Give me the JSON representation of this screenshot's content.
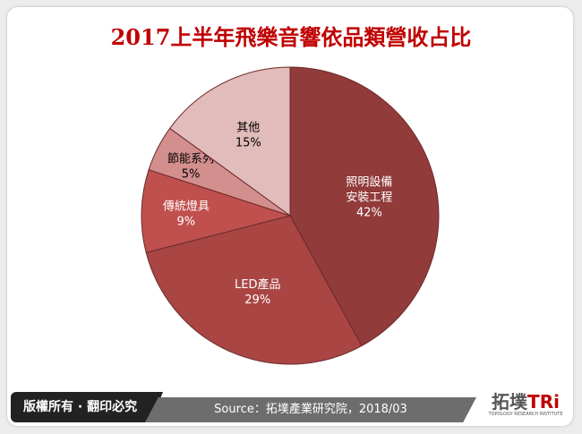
{
  "chart_data": {
    "type": "pie",
    "title": "2017上半年飛樂音響依品類營收占比",
    "start": "top",
    "direction": "clockwise",
    "slices": [
      {
        "label": "照明設備\n安裝工程",
        "value": 42,
        "display": "42%",
        "color": "#913b3a",
        "text_color": "#ffffff"
      },
      {
        "label": "LED產品",
        "value": 29,
        "display": "29%",
        "color": "#a94644",
        "text_color": "#ffffff"
      },
      {
        "label": "傳統燈具",
        "value": 9,
        "display": "9%",
        "color": "#c0504d",
        "text_color": "#ffffff"
      },
      {
        "label": "節能系列",
        "value": 5,
        "display": "5%",
        "color": "#d28f8d",
        "text_color": "#000000"
      },
      {
        "label": "其他",
        "value": 15,
        "display": "15%",
        "color": "#e2bbbb",
        "text_color": "#000000"
      }
    ]
  },
  "footer": {
    "copyright": "版權所有 · 翻印必究",
    "source": "Source：拓墣產業研究院，2018/03",
    "logo_text": "拓墣TRi",
    "logo_subtitle": "TOPOLOGY RESEARCH INSTITUTE"
  }
}
